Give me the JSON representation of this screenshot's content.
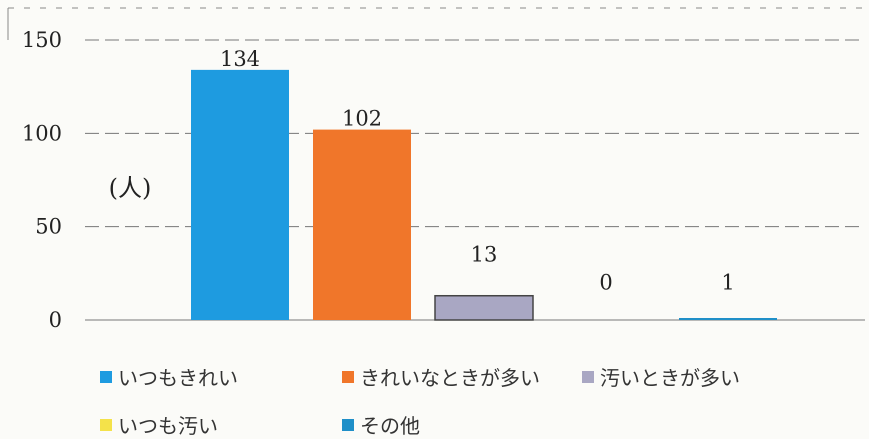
{
  "chart_data": {
    "type": "bar",
    "categories": [
      "いつもきれい",
      "きれいなときが多い",
      "汚いときが多い",
      "いつも汚い",
      "その他"
    ],
    "values": [
      134,
      102,
      13,
      0,
      1
    ],
    "colors": [
      "#1e9be0",
      "#f0762a",
      "#a9a7c3",
      "#f4e24a",
      "#1f8fc8"
    ],
    "ylabel": "(人)",
    "ylim": [
      0,
      150
    ],
    "yticks": [
      "0",
      "50",
      "100",
      "150"
    ],
    "grid": true,
    "legend_position": "bottom",
    "data_labels": [
      "134",
      "102",
      "13",
      "0",
      "1"
    ]
  }
}
